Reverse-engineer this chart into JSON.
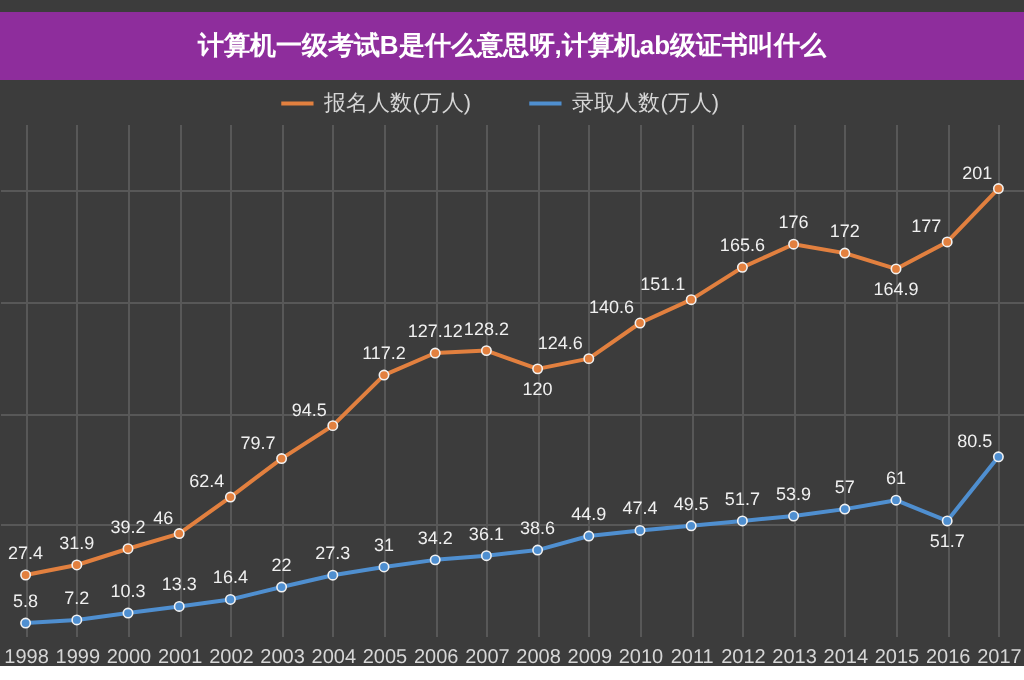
{
  "chart_data": {
    "type": "line",
    "title": "计算机一级考试B是什么意思呀,计算机ab级证书叫什么",
    "categories": [
      "1998",
      "1999",
      "2000",
      "2001",
      "2002",
      "2003",
      "2004",
      "2005",
      "2006",
      "2007",
      "2008",
      "2009",
      "2010",
      "2011",
      "2012",
      "2013",
      "2014",
      "2015",
      "2016",
      "2017"
    ],
    "series": [
      {
        "name": "报名人数(万人)",
        "color": "#e2803f",
        "values": [
          27.4,
          31.9,
          39.2,
          46,
          62.4,
          79.7,
          94.5,
          117.2,
          127.12,
          128.2,
          120,
          124.6,
          140.6,
          151.1,
          165.6,
          176,
          172,
          164.9,
          177,
          201
        ]
      },
      {
        "name": "录取人数(万人)",
        "color": "#4f8fd0",
        "values": [
          5.8,
          7.2,
          10.3,
          13.3,
          16.4,
          22,
          27.3,
          31,
          34.2,
          36.1,
          38.6,
          44.9,
          47.4,
          49.5,
          51.7,
          53.9,
          57,
          61,
          51.7,
          80.5
        ]
      }
    ],
    "ylim": [
      0,
      230
    ],
    "yticks": [
      {
        "value": 50,
        "label": null
      },
      {
        "value": 100,
        "label": null
      },
      {
        "value": 150,
        "label": null
      },
      {
        "value": 200,
        "label": null
      }
    ],
    "tick_labels": "x",
    "grid": true,
    "legend": "top",
    "marker": "circle",
    "data_labels": true
  }
}
